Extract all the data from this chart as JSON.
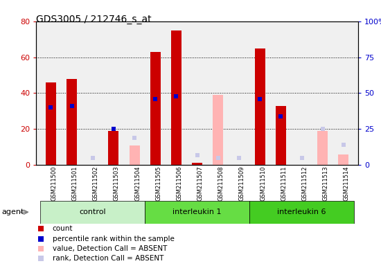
{
  "title": "GDS3005 / 212746_s_at",
  "samples": [
    "GSM211500",
    "GSM211501",
    "GSM211502",
    "GSM211503",
    "GSM211504",
    "GSM211505",
    "GSM211506",
    "GSM211507",
    "GSM211508",
    "GSM211509",
    "GSM211510",
    "GSM211511",
    "GSM211512",
    "GSM211513",
    "GSM211514"
  ],
  "groups": [
    {
      "label": "control",
      "start": 0,
      "end": 5,
      "color": "#b8f0b8"
    },
    {
      "label": "interleukin 1",
      "start": 5,
      "end": 10,
      "color": "#66dd66"
    },
    {
      "label": "interleukin 6",
      "start": 10,
      "end": 15,
      "color": "#44cc44"
    }
  ],
  "count": [
    46,
    48,
    0,
    19,
    0,
    63,
    75,
    1,
    0,
    0,
    65,
    33,
    0,
    0,
    0
  ],
  "percentile": [
    40,
    41,
    0,
    25,
    0,
    46,
    48,
    0,
    0,
    0,
    46,
    34,
    0,
    0,
    0
  ],
  "value_absent": [
    0,
    0,
    0,
    0,
    11,
    0,
    0,
    0,
    39,
    0,
    0,
    0,
    0,
    19,
    6
  ],
  "rank_absent": [
    0,
    0,
    5,
    0,
    19,
    0,
    0,
    7,
    5,
    5,
    0,
    0,
    5,
    25,
    14
  ],
  "count_color": "#cc0000",
  "percentile_color": "#0000cc",
  "value_absent_color": "#ffb3b3",
  "rank_absent_color": "#c8c8e8",
  "ylim_left": [
    0,
    80
  ],
  "ylim_right": [
    0,
    100
  ],
  "yticks_left": [
    0,
    20,
    40,
    60,
    80
  ],
  "yticks_right": [
    0,
    25,
    50,
    75,
    100
  ],
  "bar_width": 0.5,
  "bg_plot": "#f0f0f0",
  "bg_sample": "#d0d0d0"
}
